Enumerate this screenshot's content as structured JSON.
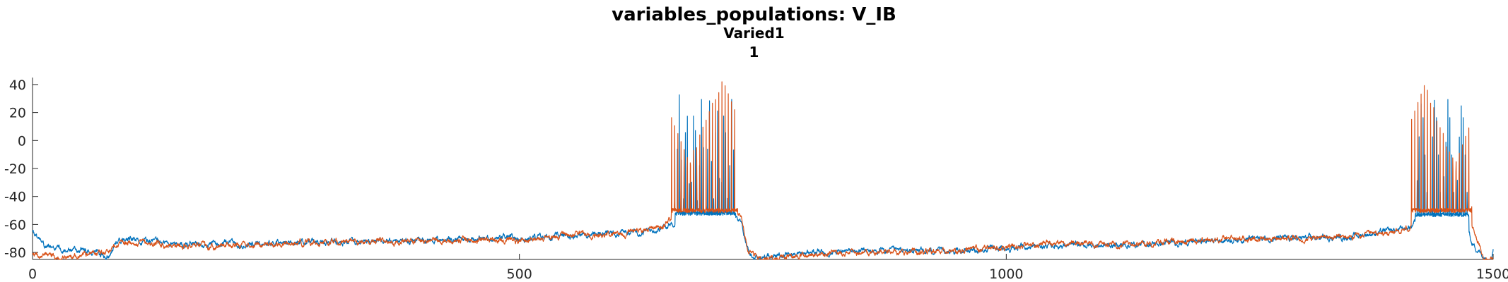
{
  "chart_data": {
    "type": "line",
    "title": "variables_populations: V_IB",
    "subtitle_lines": [
      "Varied1",
      "1"
    ],
    "xlabel": "",
    "ylabel": "",
    "xlim": [
      0,
      1500
    ],
    "ylim": [
      -85,
      45
    ],
    "xticks": [
      0,
      500,
      1000,
      1500
    ],
    "yticks": [
      -80,
      -60,
      -40,
      -20,
      0,
      20,
      40
    ],
    "grid": false,
    "series": [
      {
        "color": "#0072BD",
        "baseline": [
          [
            0,
            -66
          ],
          [
            10,
            -73
          ],
          [
            20,
            -77
          ],
          [
            40,
            -78
          ],
          [
            60,
            -80
          ],
          [
            75,
            -83
          ],
          [
            80,
            -82
          ],
          [
            85,
            -73
          ],
          [
            100,
            -71
          ],
          [
            150,
            -74
          ],
          [
            200,
            -74
          ],
          [
            250,
            -73
          ],
          [
            300,
            -72
          ],
          [
            350,
            -72
          ],
          [
            400,
            -71
          ],
          [
            450,
            -70
          ],
          [
            500,
            -70
          ],
          [
            550,
            -68
          ],
          [
            600,
            -66
          ],
          [
            640,
            -64
          ],
          [
            660,
            -58
          ],
          [
            672,
            -52
          ],
          [
            720,
            -52
          ],
          [
            728,
            -58
          ],
          [
            735,
            -80
          ],
          [
            740,
            -85
          ],
          [
            760,
            -82
          ],
          [
            800,
            -80
          ],
          [
            850,
            -79
          ],
          [
            900,
            -79
          ],
          [
            950,
            -79
          ],
          [
            1000,
            -77
          ],
          [
            1050,
            -75
          ],
          [
            1100,
            -75
          ],
          [
            1150,
            -74
          ],
          [
            1200,
            -72
          ],
          [
            1250,
            -70
          ],
          [
            1300,
            -70
          ],
          [
            1350,
            -69
          ],
          [
            1400,
            -64
          ],
          [
            1415,
            -62
          ],
          [
            1425,
            -52
          ],
          [
            1470,
            -53
          ],
          [
            1478,
            -73
          ],
          [
            1490,
            -83
          ],
          [
            1498,
            -84
          ],
          [
            1500,
            -77
          ]
        ],
        "bursts": [
          {
            "start": 660,
            "end": 722,
            "count": 30,
            "peak": 36,
            "trough": -52
          },
          {
            "start": 1420,
            "end": 1475,
            "count": 28,
            "peak": 35,
            "trough": -53
          }
        ]
      },
      {
        "color": "#D95319",
        "baseline": [
          [
            0,
            -80
          ],
          [
            10,
            -82
          ],
          [
            20,
            -84
          ],
          [
            40,
            -83
          ],
          [
            60,
            -81
          ],
          [
            75,
            -80
          ],
          [
            80,
            -78
          ],
          [
            85,
            -74
          ],
          [
            100,
            -73
          ],
          [
            150,
            -75
          ],
          [
            200,
            -75
          ],
          [
            250,
            -74
          ],
          [
            300,
            -73
          ],
          [
            350,
            -72
          ],
          [
            400,
            -71
          ],
          [
            450,
            -71
          ],
          [
            500,
            -71
          ],
          [
            550,
            -68
          ],
          [
            600,
            -67
          ],
          [
            640,
            -63
          ],
          [
            655,
            -58
          ],
          [
            670,
            -50
          ],
          [
            720,
            -50
          ],
          [
            728,
            -55
          ],
          [
            735,
            -78
          ],
          [
            745,
            -84
          ],
          [
            760,
            -84
          ],
          [
            800,
            -81
          ],
          [
            850,
            -80
          ],
          [
            900,
            -80
          ],
          [
            950,
            -79
          ],
          [
            1000,
            -77
          ],
          [
            1050,
            -73
          ],
          [
            1100,
            -74
          ],
          [
            1150,
            -73
          ],
          [
            1200,
            -71
          ],
          [
            1250,
            -70
          ],
          [
            1300,
            -70
          ],
          [
            1350,
            -69
          ],
          [
            1400,
            -66
          ],
          [
            1415,
            -62
          ],
          [
            1420,
            -50
          ],
          [
            1475,
            -50
          ],
          [
            1478,
            -60
          ],
          [
            1490,
            -84
          ],
          [
            1500,
            -85
          ]
        ],
        "bursts": [
          {
            "start": 656,
            "end": 724,
            "count": 21,
            "peak": 43,
            "trough": -50
          },
          {
            "start": 1416,
            "end": 1478,
            "count": 19,
            "peak": 40,
            "trough": -50
          }
        ]
      }
    ]
  }
}
